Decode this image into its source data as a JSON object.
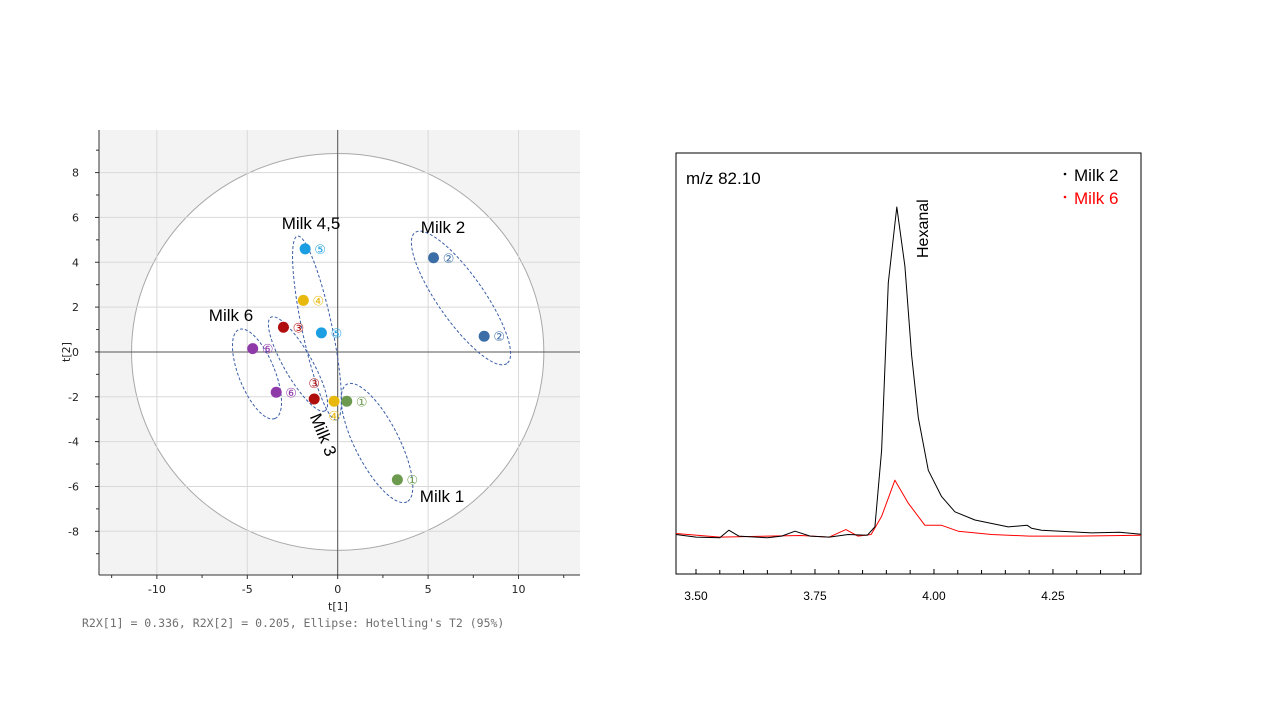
{
  "chart_data": [
    {
      "type": "scatter",
      "title": "",
      "xlabel": "t[1]",
      "ylabel": "t[2]",
      "xlim": [
        -13.2,
        13.4
      ],
      "ylim": [
        -9.95,
        9.9
      ],
      "x_ticks": [
        -10,
        -5,
        0,
        5,
        10
      ],
      "y_ticks": [
        -8,
        -6,
        -4,
        -2,
        0,
        2,
        4,
        6,
        8
      ],
      "grid": true,
      "footnote": "R2X[1] = 0.336, R2X[2] = 0.205, Ellipse: Hotelling's T2 (95%)",
      "hotelling_ellipse": {
        "a": 11.4,
        "b": 8.85
      },
      "colors": {
        "1": "#6b9a4e",
        "2": "#3b6ea6",
        "3": "#b00d0d",
        "4": "#e8b80c",
        "5": "#1b9fe2",
        "6": "#8f3aa9"
      },
      "points": [
        {
          "x": -1.8,
          "y": 4.6,
          "milk": "5",
          "label": "⑤"
        },
        {
          "x": 5.3,
          "y": 4.2,
          "milk": "2",
          "label": "②"
        },
        {
          "x": -1.9,
          "y": 2.3,
          "milk": "4",
          "label": "④"
        },
        {
          "x": -3.0,
          "y": 1.1,
          "milk": "3",
          "label": "③"
        },
        {
          "x": -0.9,
          "y": 0.85,
          "milk": "5",
          "label": "⑤"
        },
        {
          "x": 8.1,
          "y": 0.7,
          "milk": "2",
          "label": "②"
        },
        {
          "x": -4.7,
          "y": 0.15,
          "milk": "6",
          "label": "⑥"
        },
        {
          "x": -3.4,
          "y": -1.8,
          "milk": "6",
          "label": "⑥"
        },
        {
          "x": -1.3,
          "y": -2.1,
          "milk": "3",
          "label": "③",
          "label_pos": "above"
        },
        {
          "x": -0.2,
          "y": -2.2,
          "milk": "4",
          "label": "④",
          "label_pos": "below"
        },
        {
          "x": 0.5,
          "y": -2.2,
          "milk": "1",
          "label": "①"
        },
        {
          "x": 3.3,
          "y": -5.7,
          "milk": "1",
          "label": "①"
        }
      ],
      "group_labels": [
        "Milk 4,5",
        "Milk 2",
        "Milk 6",
        "Milk 3",
        "Milk 1"
      ]
    },
    {
      "type": "line",
      "title": "m/z 82.10",
      "xlabel": "",
      "ylabel": "",
      "xlim": [
        3.458,
        4.435
      ],
      "ylim": [
        -11.5,
        116.4
      ],
      "x_ticks": [
        "3.50",
        "3.75",
        "4.00",
        "4.25"
      ],
      "annotation": "Hexanal",
      "legend": "top-right",
      "series": [
        {
          "name": "Milk 2",
          "color": "#000000",
          "x": [
            3.458,
            3.5,
            3.55,
            3.569,
            3.59,
            3.65,
            3.68,
            3.708,
            3.74,
            3.78,
            3.82,
            3.86,
            3.876,
            3.89,
            3.904,
            3.922,
            3.939,
            3.953,
            3.967,
            3.988,
            4.016,
            4.044,
            4.086,
            4.156,
            4.196,
            4.205,
            4.226,
            4.331,
            4.39,
            4.435
          ],
          "y": [
            0.5,
            -0.3,
            -0.5,
            1.8,
            0,
            -0.5,
            0,
            1.5,
            0,
            -0.3,
            0.5,
            0.3,
            2.8,
            26,
            77,
            100,
            82,
            55,
            36,
            20,
            12,
            7.4,
            4.9,
            2.8,
            3.3,
            2.4,
            1.8,
            1,
            1.2,
            0.6
          ]
        },
        {
          "name": "Milk 6",
          "color": "#ff0000",
          "x": [
            3.458,
            3.55,
            3.65,
            3.72,
            3.78,
            3.815,
            3.84,
            3.868,
            3.89,
            3.918,
            3.946,
            3.981,
            4.016,
            4.051,
            4.121,
            4.2,
            4.3,
            4.435
          ],
          "y": [
            0.8,
            -0.3,
            0,
            0.2,
            -0.3,
            2,
            0,
            0.5,
            6,
            17,
            10,
            3.3,
            3.3,
            1.5,
            0.5,
            0,
            0,
            0.3
          ]
        }
      ]
    }
  ]
}
